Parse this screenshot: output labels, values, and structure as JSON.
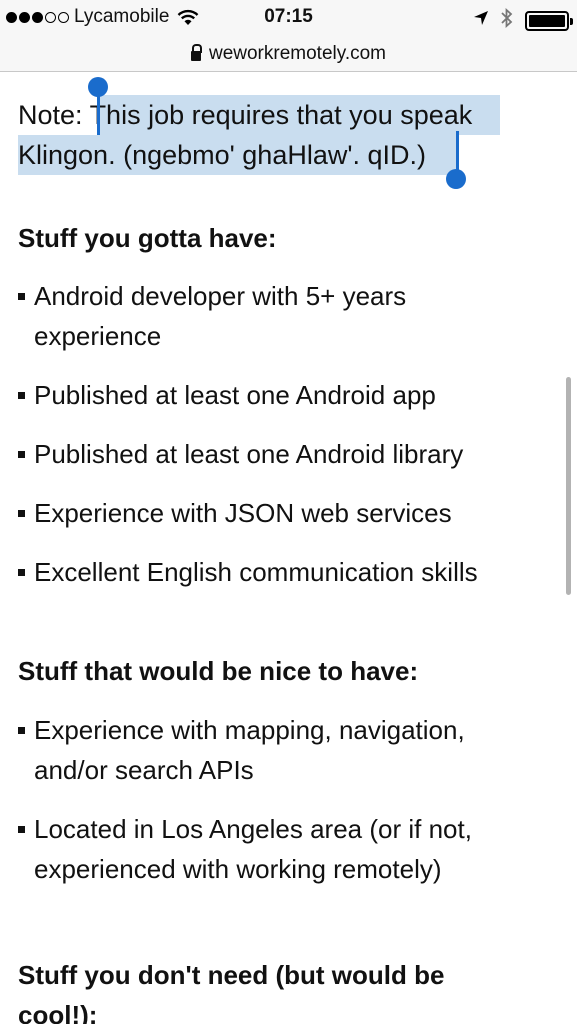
{
  "status_bar": {
    "carrier": "Lycamobile",
    "time": "07:15",
    "signal_bars_filled": 3,
    "signal_bars_total": 5
  },
  "browser": {
    "url": "weworkremotely.com"
  },
  "note": {
    "prefix": "Note: ",
    "selected_text_line1": "This job requires that you speak",
    "selected_text_line2": "Klingon. (ngebmo' ghaHlaw'. qID.)"
  },
  "sections": {
    "must_have": {
      "heading": "Stuff you gotta have:",
      "items": [
        "Android developer with 5+ years",
        "experience",
        "Published at least one Android app",
        "Published at least one Android library",
        "Experience with JSON web services",
        "Excellent English communication skills"
      ]
    },
    "nice_to_have": {
      "heading": "Stuff that would be nice to have:",
      "items": [
        "Experience with mapping, navigation,",
        "and/or search APIs",
        "Located in Los Angeles area (or if not,",
        "experienced with working remotely)"
      ]
    },
    "dont_need": {
      "heading_line1": "Stuff you don't need (but would be",
      "heading_line2": "cool!):"
    }
  },
  "colors": {
    "selection": "#c9ddef",
    "selection_handle": "#1a6ccc"
  }
}
